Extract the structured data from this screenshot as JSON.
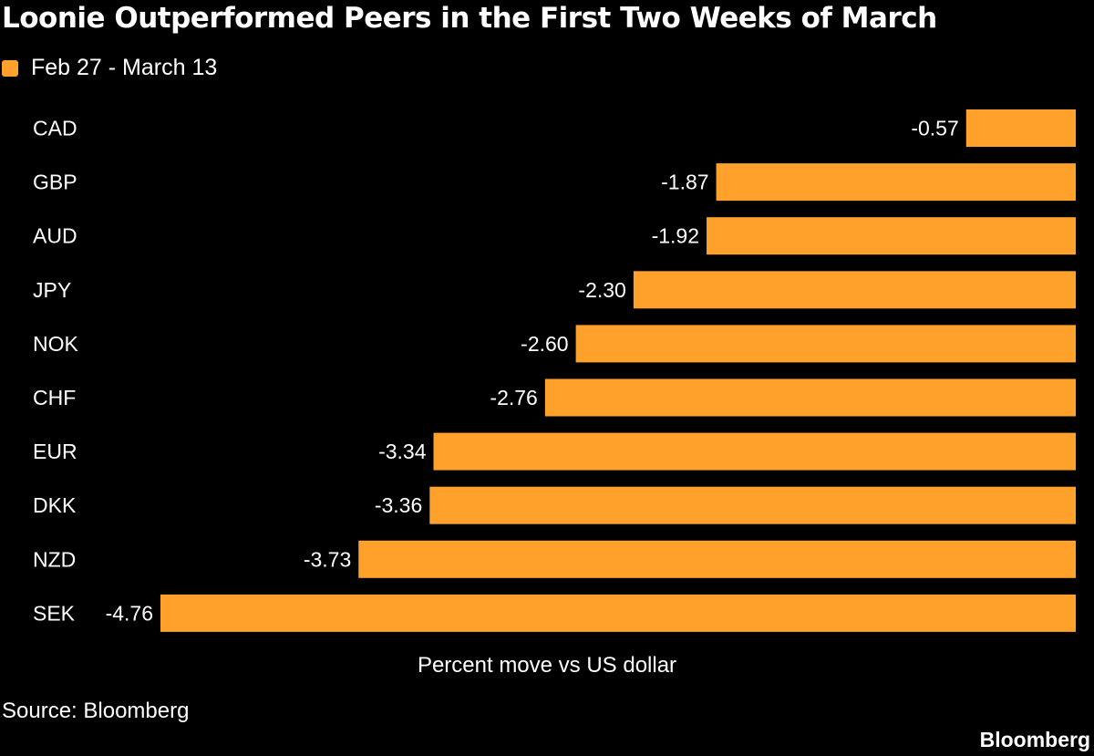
{
  "chart_data": {
    "type": "bar",
    "orientation": "horizontal",
    "title": "Loonie Outperformed Peers in the First Two Weeks of March",
    "categories": [
      "CAD",
      "GBP",
      "AUD",
      "JPY",
      "NOK",
      "CHF",
      "EUR",
      "DKK",
      "NZD",
      "SEK"
    ],
    "series": [
      {
        "name": "Feb 27 - March 13",
        "values": [
          -0.57,
          -1.87,
          -1.92,
          -2.3,
          -2.6,
          -2.76,
          -3.34,
          -3.36,
          -3.73,
          -4.76
        ],
        "labels": [
          "-0.57",
          "-1.87",
          "-1.92",
          "-2.30",
          "-2.60",
          "-2.76",
          "-3.34",
          "-3.36",
          "-3.73",
          "-4.76"
        ]
      }
    ],
    "xlabel": "Percent move vs US dollar",
    "xlim": [
      -4.76,
      0
    ],
    "grid": false,
    "legend_position": "top-left",
    "colors": {
      "bar": "#FFA12B",
      "background": "#000000",
      "text": "#FFFFFF"
    }
  },
  "footer": {
    "source": "Source: Bloomberg",
    "brand": "Bloomberg"
  }
}
